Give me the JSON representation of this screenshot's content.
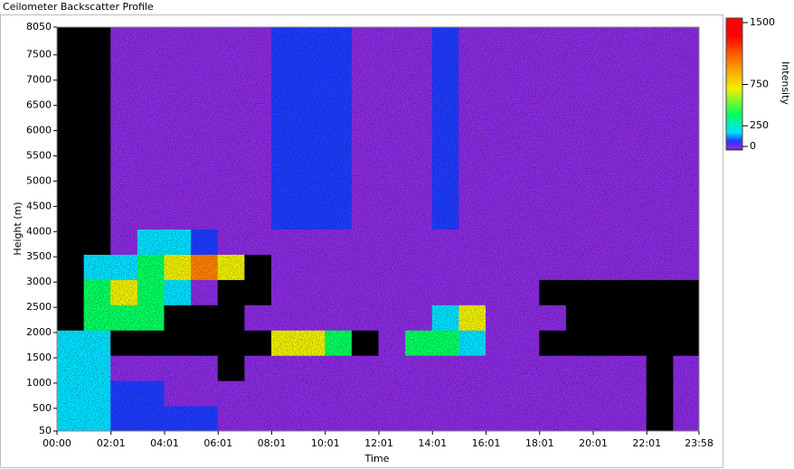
{
  "chart_data": {
    "type": "heatmap",
    "title": "Ceilometer Backscatter Profile",
    "xlabel": "Time",
    "ylabel": "Height (m)",
    "zlabel": "Intensity",
    "x": [
      0,
      60,
      120,
      180,
      240,
      300,
      360,
      420,
      480,
      540,
      600,
      660,
      720,
      780,
      840,
      900,
      960,
      1020,
      1080,
      1140,
      1200,
      1260,
      1320,
      1380,
      1438
    ],
    "y": [
      50,
      550,
      1050,
      1550,
      2050,
      2550,
      3050,
      3550,
      4050,
      4550,
      5050,
      5550,
      6050,
      6550,
      7050,
      7550,
      8050
    ],
    "xlim": [
      0,
      1438
    ],
    "ylim": [
      50,
      8050
    ],
    "zlim": [
      0,
      1500
    ],
    "xticks": [
      {
        "value": 0,
        "label": "00:00"
      },
      {
        "value": 121,
        "label": "02:01"
      },
      {
        "value": 241,
        "label": "04:01"
      },
      {
        "value": 361,
        "label": "06:01"
      },
      {
        "value": 481,
        "label": "08:01"
      },
      {
        "value": 601,
        "label": "10:01"
      },
      {
        "value": 721,
        "label": "12:01"
      },
      {
        "value": 841,
        "label": "14:01"
      },
      {
        "value": 961,
        "label": "16:01"
      },
      {
        "value": 1081,
        "label": "18:01"
      },
      {
        "value": 1201,
        "label": "20:01"
      },
      {
        "value": 1321,
        "label": "22:01"
      },
      {
        "value": 1438,
        "label": "23:58"
      }
    ],
    "yticks": [
      50,
      500,
      1000,
      1500,
      2000,
      2500,
      3000,
      3500,
      4000,
      4500,
      5000,
      5500,
      6000,
      6500,
      7000,
      7500,
      8050
    ],
    "zticks": [
      0,
      250,
      750,
      1500
    ],
    "colorscale": [
      [
        0,
        "#000000"
      ],
      [
        15,
        "#8a2be2"
      ],
      [
        100,
        "#1e3cff"
      ],
      [
        200,
        "#00e0ff"
      ],
      [
        400,
        "#00ff60"
      ],
      [
        700,
        "#f0f000"
      ],
      [
        1000,
        "#ff8000"
      ],
      [
        1300,
        "#ff0000"
      ]
    ],
    "values": [
      [
        300,
        200,
        150,
        150,
        150,
        150,
        40,
        40,
        40,
        40,
        40,
        40,
        40,
        40,
        40,
        40,
        40,
        40,
        40,
        40,
        40,
        40,
        5,
        40
      ],
      [
        300,
        300,
        150,
        100,
        80,
        40,
        40,
        40,
        40,
        40,
        40,
        40,
        40,
        40,
        40,
        40,
        40,
        40,
        40,
        40,
        40,
        40,
        5,
        40
      ],
      [
        250,
        200,
        40,
        40,
        40,
        40,
        5,
        30,
        40,
        40,
        40,
        40,
        40,
        40,
        40,
        40,
        40,
        40,
        40,
        40,
        40,
        40,
        5,
        40
      ],
      [
        250,
        300,
        5,
        5,
        5,
        5,
        5,
        5,
        800,
        900,
        600,
        10,
        20,
        500,
        400,
        300,
        30,
        20,
        5,
        5,
        5,
        5,
        5,
        5
      ],
      [
        10,
        400,
        600,
        400,
        10,
        10,
        5,
        20,
        30,
        20,
        30,
        20,
        20,
        30,
        300,
        700,
        40,
        30,
        20,
        10,
        10,
        10,
        10,
        10
      ],
      [
        5,
        500,
        700,
        500,
        300,
        30,
        10,
        10,
        20,
        20,
        20,
        20,
        20,
        20,
        20,
        20,
        20,
        20,
        10,
        10,
        10,
        10,
        10,
        10
      ],
      [
        5,
        200,
        200,
        600,
        700,
        1000,
        900,
        10,
        20,
        20,
        20,
        20,
        20,
        20,
        20,
        20,
        20,
        20,
        20,
        20,
        20,
        20,
        20,
        20
      ],
      [
        5,
        5,
        20,
        300,
        200,
        100,
        20,
        20,
        20,
        20,
        20,
        20,
        20,
        20,
        20,
        20,
        20,
        20,
        20,
        20,
        20,
        20,
        20,
        20
      ],
      [
        5,
        5,
        20,
        20,
        20,
        20,
        20,
        20,
        100,
        120,
        100,
        60,
        60,
        80,
        100,
        80,
        20,
        20,
        20,
        20,
        20,
        20,
        20,
        20
      ],
      [
        5,
        5,
        20,
        20,
        20,
        20,
        20,
        20,
        100,
        120,
        100,
        60,
        60,
        80,
        100,
        80,
        20,
        20,
        20,
        20,
        20,
        20,
        20,
        20
      ],
      [
        5,
        5,
        20,
        20,
        20,
        20,
        20,
        20,
        100,
        120,
        100,
        60,
        60,
        80,
        100,
        80,
        20,
        20,
        20,
        20,
        20,
        20,
        20,
        20
      ],
      [
        5,
        5,
        20,
        20,
        20,
        20,
        20,
        20,
        100,
        120,
        100,
        60,
        60,
        80,
        100,
        80,
        20,
        20,
        20,
        20,
        20,
        20,
        20,
        20
      ],
      [
        5,
        5,
        20,
        20,
        20,
        20,
        20,
        20,
        100,
        120,
        100,
        60,
        60,
        80,
        100,
        80,
        20,
        20,
        20,
        20,
        20,
        20,
        20,
        20
      ],
      [
        5,
        5,
        20,
        20,
        20,
        20,
        20,
        20,
        100,
        120,
        100,
        60,
        60,
        80,
        100,
        80,
        20,
        20,
        20,
        20,
        20,
        20,
        20,
        20
      ],
      [
        5,
        5,
        20,
        20,
        20,
        20,
        20,
        20,
        100,
        120,
        100,
        60,
        60,
        80,
        100,
        80,
        20,
        20,
        20,
        20,
        20,
        20,
        20,
        20
      ],
      [
        5,
        5,
        20,
        20,
        20,
        20,
        20,
        20,
        100,
        120,
        100,
        60,
        60,
        80,
        100,
        80,
        20,
        20,
        20,
        20,
        20,
        20,
        20,
        20
      ]
    ]
  }
}
